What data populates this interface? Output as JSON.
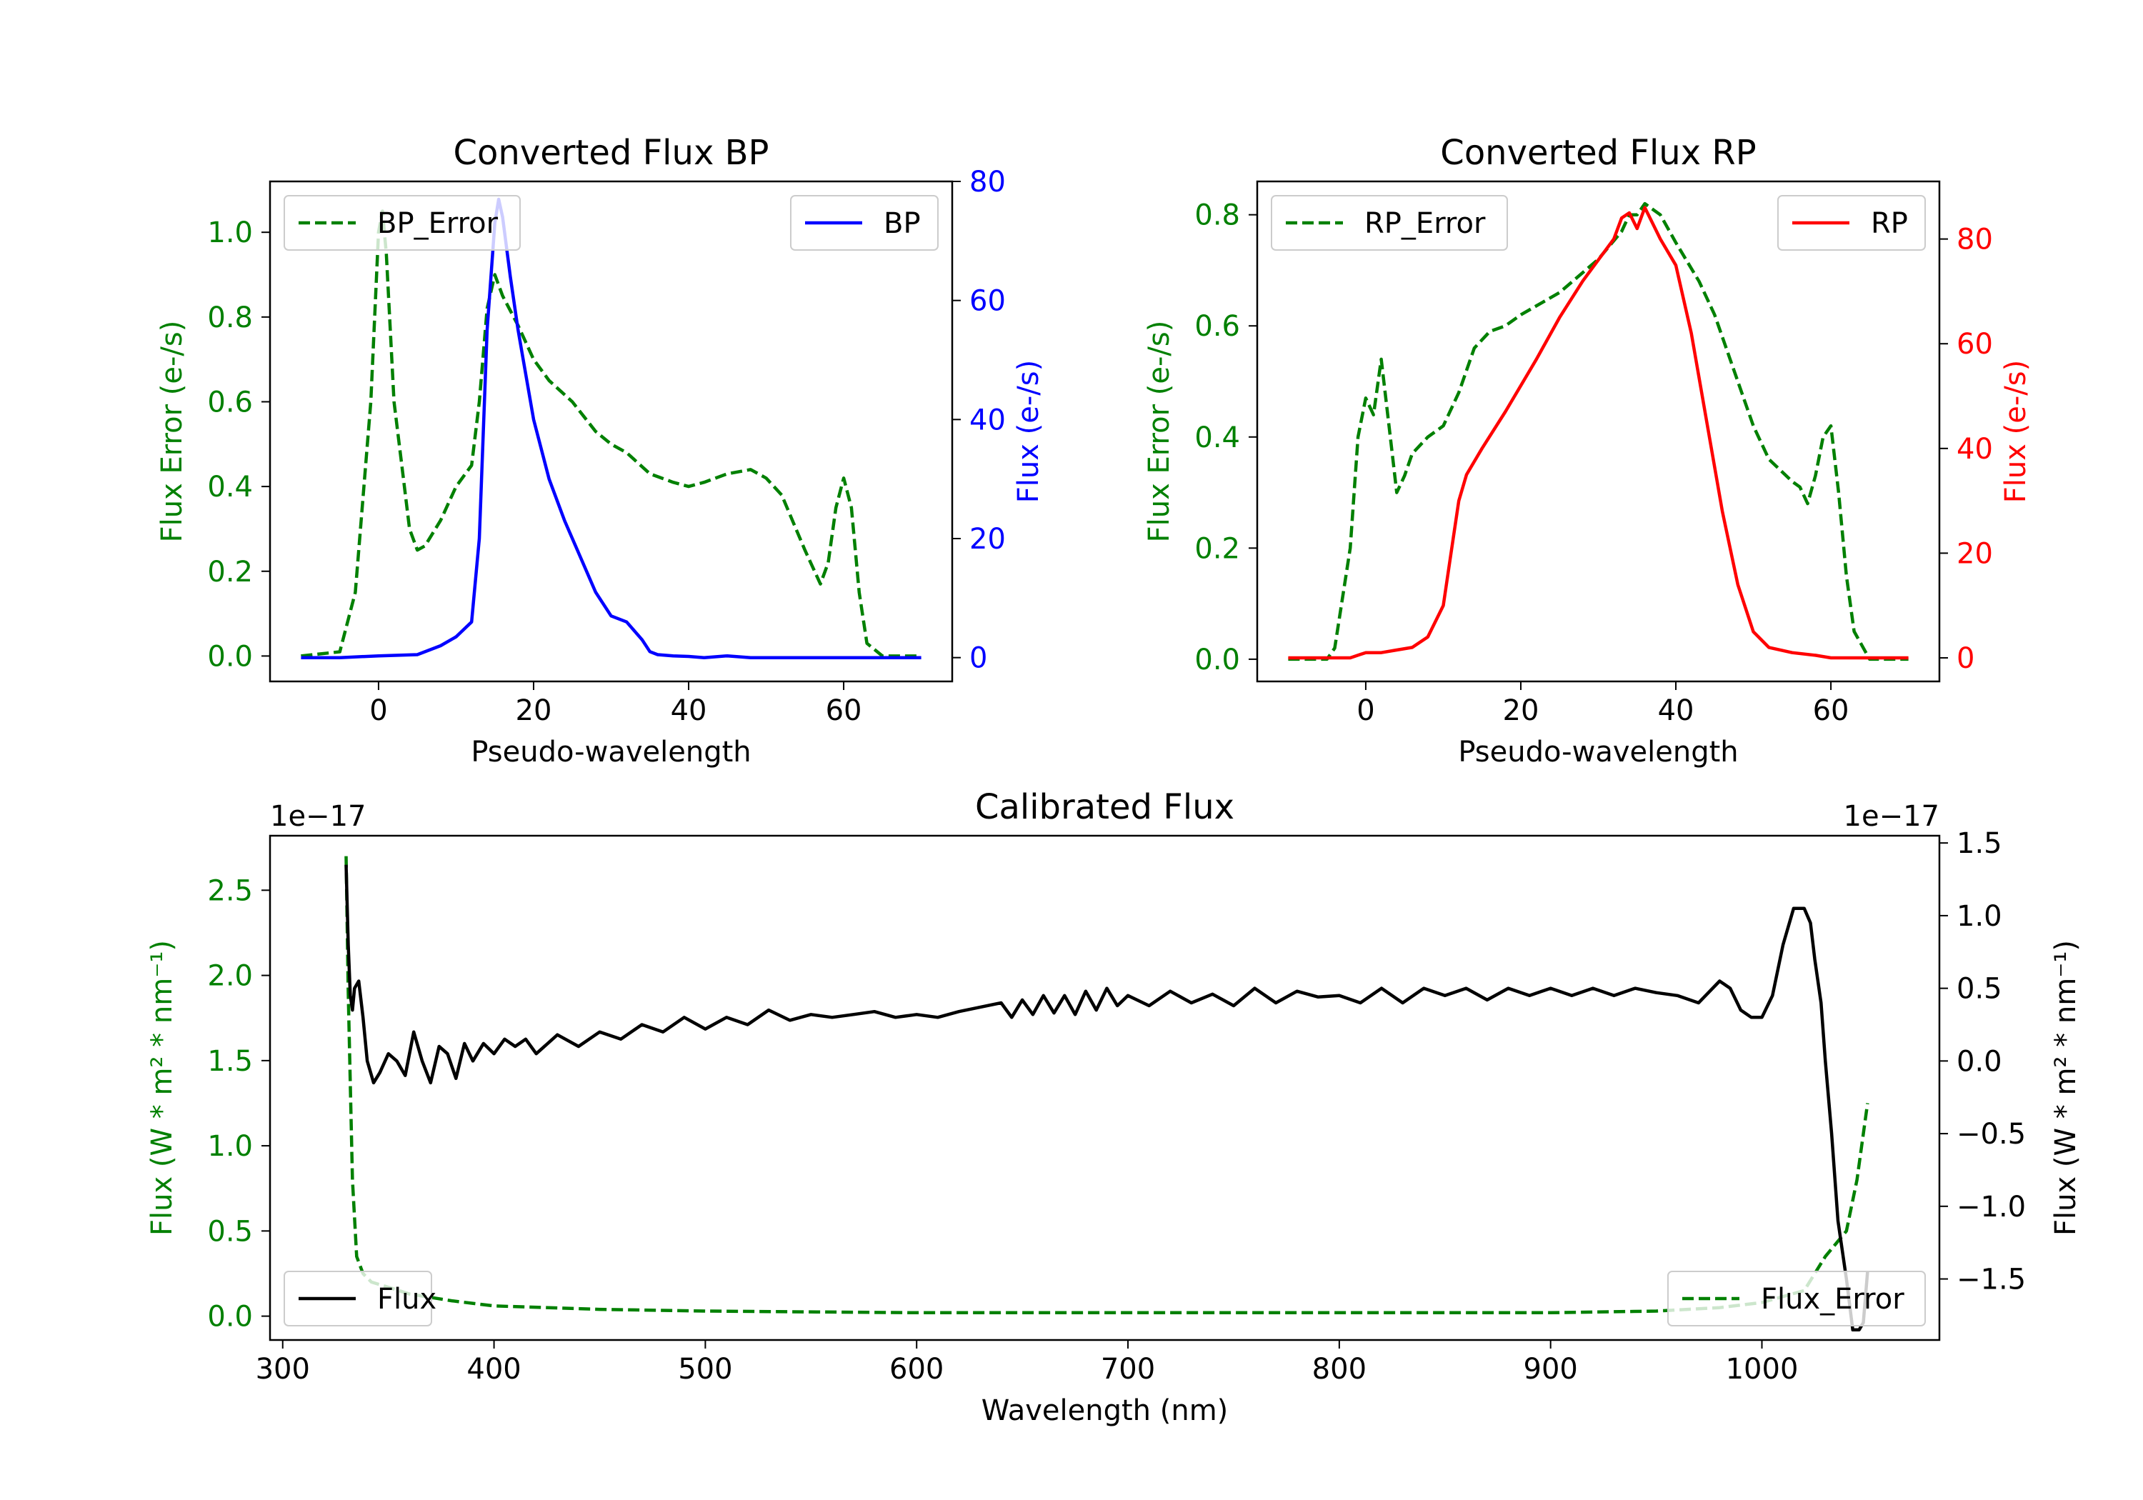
{
  "colors": {
    "bp": "#0000ff",
    "rp": "#ff0000",
    "error": "#008000",
    "flux": "#000000",
    "axis": "#000000",
    "legend_border": "#cccccc"
  },
  "chart_data": [
    {
      "id": "bp",
      "type": "line",
      "title": "Converted Flux BP",
      "xlabel": "Pseudo-wavelength",
      "ylabel_left": "Flux Error (e-/s)",
      "ylabel_right": "Flux (e-/s)",
      "xlim": [
        -14,
        74
      ],
      "ylim_left": [
        -0.06,
        1.12
      ],
      "ylim_right": [
        -4,
        80
      ],
      "xticks": [
        0,
        20,
        40,
        60
      ],
      "yticks_left": [
        0.0,
        0.2,
        0.4,
        0.6,
        0.8,
        1.0
      ],
      "ytick_labels_left": [
        "0.0",
        "0.2",
        "0.4",
        "0.6",
        "0.8",
        "1.0"
      ],
      "yticks_right": [
        0,
        20,
        40,
        60,
        80
      ],
      "series": [
        {
          "name": "BP_Error",
          "axis": "left",
          "style": "dashed",
          "color": "error",
          "legend": "top-left",
          "x": [
            -10,
            -5,
            -3,
            -1,
            0,
            0.5,
            1,
            2,
            3,
            4,
            5,
            6,
            8,
            10,
            12,
            13,
            14,
            15,
            16,
            18,
            20,
            22,
            25,
            28,
            30,
            32,
            35,
            38,
            40,
            42,
            45,
            48,
            50,
            52,
            55,
            57,
            58,
            59,
            60,
            61,
            62,
            63,
            65,
            68,
            70
          ],
          "values": [
            0.0,
            0.01,
            0.15,
            0.6,
            1.0,
            1.05,
            0.95,
            0.6,
            0.45,
            0.3,
            0.25,
            0.26,
            0.32,
            0.4,
            0.45,
            0.6,
            0.82,
            0.9,
            0.85,
            0.78,
            0.7,
            0.65,
            0.6,
            0.53,
            0.5,
            0.48,
            0.43,
            0.41,
            0.4,
            0.41,
            0.43,
            0.44,
            0.42,
            0.38,
            0.25,
            0.17,
            0.22,
            0.35,
            0.42,
            0.35,
            0.15,
            0.03,
            0.0,
            0.0,
            0.0
          ]
        },
        {
          "name": "BP",
          "axis": "right",
          "style": "solid",
          "color": "bp",
          "legend": "top-right",
          "x": [
            -10,
            -5,
            0,
            5,
            8,
            10,
            12,
            13,
            14,
            15,
            15.5,
            16,
            17,
            18,
            20,
            22,
            24,
            26,
            28,
            30,
            32,
            34,
            35,
            36,
            38,
            40,
            42,
            45,
            48,
            50,
            55,
            60,
            65,
            70
          ],
          "values": [
            0,
            0,
            0.3,
            0.5,
            2,
            3.5,
            6,
            20,
            55,
            73,
            77,
            74,
            64,
            55,
            40,
            30,
            23,
            17,
            11,
            7,
            6,
            3,
            1,
            0.5,
            0.3,
            0.2,
            0,
            0.3,
            0,
            0,
            0,
            0,
            0,
            0
          ]
        }
      ]
    },
    {
      "id": "rp",
      "type": "line",
      "title": "Converted Flux RP",
      "xlabel": "Pseudo-wavelength",
      "ylabel_left": "Flux Error (e-/s)",
      "ylabel_right": "Flux (e-/s)",
      "xlim": [
        -14,
        74
      ],
      "ylim_left": [
        -0.04,
        0.86
      ],
      "ylim_right": [
        -4.5,
        91
      ],
      "xticks": [
        0,
        20,
        40,
        60
      ],
      "yticks_left": [
        0.0,
        0.2,
        0.4,
        0.6,
        0.8
      ],
      "ytick_labels_left": [
        "0.0",
        "0.2",
        "0.4",
        "0.6",
        "0.8"
      ],
      "yticks_right": [
        0,
        20,
        40,
        60,
        80
      ],
      "series": [
        {
          "name": "RP_Error",
          "axis": "left",
          "style": "dashed",
          "color": "error",
          "legend": "top-left",
          "x": [
            -10,
            -5,
            -4,
            -2,
            -1,
            0,
            1,
            2,
            3,
            4,
            5,
            6,
            8,
            10,
            12,
            14,
            16,
            18,
            20,
            25,
            30,
            33,
            34,
            35,
            36,
            38,
            40,
            43,
            45,
            48,
            50,
            52,
            55,
            56,
            57,
            58,
            59,
            60,
            61,
            62,
            63,
            65,
            70
          ],
          "values": [
            0,
            0,
            0.02,
            0.2,
            0.4,
            0.47,
            0.44,
            0.54,
            0.42,
            0.3,
            0.33,
            0.37,
            0.4,
            0.42,
            0.48,
            0.56,
            0.59,
            0.6,
            0.62,
            0.66,
            0.72,
            0.77,
            0.8,
            0.8,
            0.82,
            0.8,
            0.75,
            0.68,
            0.62,
            0.5,
            0.42,
            0.36,
            0.32,
            0.31,
            0.28,
            0.33,
            0.4,
            0.42,
            0.3,
            0.15,
            0.05,
            0.0,
            0.0
          ]
        },
        {
          "name": "RP",
          "axis": "right",
          "style": "solid",
          "color": "rp",
          "legend": "top-right",
          "x": [
            -10,
            -5,
            -2,
            0,
            2,
            4,
            6,
            8,
            10,
            11,
            12,
            13,
            15,
            18,
            20,
            22,
            25,
            28,
            30,
            32,
            33,
            34,
            35,
            36,
            37,
            38,
            40,
            42,
            44,
            46,
            48,
            50,
            52,
            55,
            58,
            60,
            65,
            70
          ],
          "values": [
            0,
            0,
            0,
            1,
            1,
            1.5,
            2,
            4,
            10,
            20,
            30,
            35,
            40,
            47,
            52,
            57,
            65,
            72,
            76,
            80,
            84,
            85,
            82,
            86,
            83,
            80,
            75,
            62,
            45,
            28,
            14,
            5,
            2,
            1,
            0.5,
            0,
            0,
            0
          ]
        }
      ]
    },
    {
      "id": "calibrated",
      "type": "line",
      "title": "Calibrated Flux",
      "xlabel": "Wavelength (nm)",
      "ylabel_left": "Flux (W * m² * nm⁻¹)",
      "ylabel_right": "Flux (W * m² * nm⁻¹)",
      "offset_left": "1e−17",
      "offset_right": "1e−17",
      "xlim": [
        294,
        1084
      ],
      "ylim_left": [
        -0.14,
        2.82
      ],
      "ylim_right": [
        -1.92,
        1.55
      ],
      "xticks": [
        300,
        400,
        500,
        600,
        700,
        800,
        900,
        1000
      ],
      "yticks_left": [
        0.0,
        0.5,
        1.0,
        1.5,
        2.0,
        2.5
      ],
      "ytick_labels_left": [
        "0.0",
        "0.5",
        "1.0",
        "1.5",
        "2.0",
        "2.5"
      ],
      "yticks_right": [
        1.5,
        1.0,
        0.5,
        0.0,
        -0.5,
        -1.0,
        -1.5
      ],
      "ytick_labels_right": [
        "1.5",
        "1.0",
        "0.5",
        "0.0",
        "−0.5",
        "−1.0",
        "−1.5"
      ],
      "series": [
        {
          "name": "Flux_Error",
          "axis": "left",
          "style": "dashed",
          "color": "error",
          "legend": "bottom-right",
          "x": [
            330,
            331,
            333,
            335,
            338,
            342,
            350,
            360,
            380,
            400,
            450,
            500,
            600,
            640,
            700,
            800,
            900,
            950,
            980,
            1000,
            1020,
            1030,
            1040,
            1045,
            1050
          ],
          "values": [
            2.7,
            1.9,
            0.8,
            0.35,
            0.25,
            0.2,
            0.17,
            0.13,
            0.09,
            0.06,
            0.04,
            0.03,
            0.02,
            0.02,
            0.02,
            0.02,
            0.02,
            0.03,
            0.05,
            0.08,
            0.15,
            0.35,
            0.5,
            0.8,
            1.25
          ]
        },
        {
          "name": "Flux",
          "axis": "right",
          "style": "solid",
          "color": "flux",
          "legend": "bottom-left",
          "x": [
            330,
            331,
            332,
            333,
            334,
            336,
            338,
            340,
            343,
            346,
            350,
            354,
            358,
            362,
            366,
            370,
            374,
            378,
            382,
            386,
            390,
            395,
            400,
            405,
            410,
            415,
            420,
            430,
            440,
            450,
            460,
            470,
            480,
            490,
            500,
            510,
            520,
            530,
            540,
            550,
            560,
            570,
            580,
            590,
            600,
            610,
            620,
            630,
            640,
            645,
            650,
            655,
            660,
            665,
            670,
            675,
            680,
            685,
            690,
            695,
            700,
            710,
            720,
            730,
            740,
            750,
            760,
            770,
            780,
            790,
            800,
            810,
            820,
            830,
            840,
            850,
            860,
            870,
            880,
            890,
            900,
            910,
            920,
            930,
            940,
            950,
            960,
            970,
            980,
            985,
            990,
            995,
            1000,
            1005,
            1010,
            1015,
            1020,
            1023,
            1025,
            1028,
            1030,
            1033,
            1036,
            1040,
            1043,
            1046,
            1048,
            1050
          ],
          "values": [
            1.35,
            0.8,
            0.45,
            0.35,
            0.5,
            0.55,
            0.3,
            0.0,
            -0.15,
            -0.08,
            0.05,
            0.0,
            -0.1,
            0.2,
            0.0,
            -0.15,
            0.1,
            0.05,
            -0.12,
            0.12,
            0.0,
            0.12,
            0.05,
            0.15,
            0.1,
            0.15,
            0.05,
            0.18,
            0.1,
            0.2,
            0.15,
            0.25,
            0.2,
            0.3,
            0.22,
            0.3,
            0.25,
            0.35,
            0.28,
            0.32,
            0.3,
            0.32,
            0.34,
            0.3,
            0.32,
            0.3,
            0.34,
            0.37,
            0.4,
            0.3,
            0.42,
            0.32,
            0.45,
            0.33,
            0.45,
            0.32,
            0.48,
            0.35,
            0.5,
            0.38,
            0.45,
            0.38,
            0.48,
            0.4,
            0.46,
            0.38,
            0.5,
            0.4,
            0.48,
            0.44,
            0.45,
            0.4,
            0.5,
            0.4,
            0.5,
            0.45,
            0.5,
            0.42,
            0.5,
            0.45,
            0.5,
            0.45,
            0.5,
            0.45,
            0.5,
            0.47,
            0.45,
            0.4,
            0.55,
            0.5,
            0.35,
            0.3,
            0.3,
            0.45,
            0.8,
            1.05,
            1.05,
            0.95,
            0.7,
            0.4,
            0.0,
            -0.5,
            -1.1,
            -1.5,
            -1.85,
            -1.85,
            -1.8,
            -1.45
          ]
        }
      ]
    }
  ]
}
